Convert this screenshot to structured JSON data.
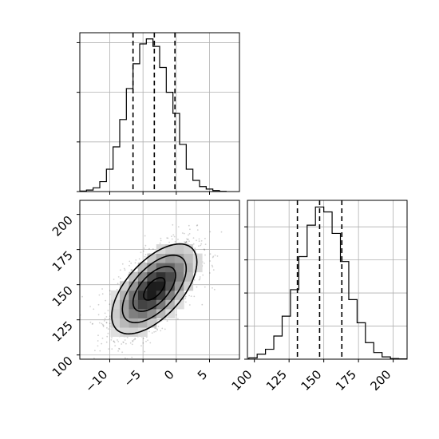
{
  "chart_data": [
    {
      "type": "histogram",
      "panel": "top-left",
      "variable_index": 0,
      "bin_edges": [
        -14.5,
        -13.5,
        -12.5,
        -11.5,
        -10.5,
        -9.5,
        -8.5,
        -7.5,
        -6.5,
        -5.5,
        -4.5,
        -3.5,
        -2.5,
        -1.5,
        -0.5,
        0.5,
        1.5,
        2.5,
        3.5,
        4.5,
        5.5,
        6.5,
        7.5
      ],
      "counts": [
        0.2,
        0.6,
        1.5,
        4.0,
        9.0,
        18.0,
        29.0,
        41.5,
        51.5,
        59.5,
        61.5,
        58.5,
        50.0,
        40.0,
        31.5,
        19.0,
        9.0,
        4.5,
        2.0,
        1.0,
        0.4,
        0.1
      ],
      "quantile_lines": [
        -6.5,
        -3.3,
        -0.2
      ],
      "xlim": [
        -14.5,
        9.5
      ],
      "ylim": [
        0,
        64
      ],
      "grid": true
    },
    {
      "type": "histogram",
      "panel": "bottom-right",
      "variable_index": 1,
      "x_ticks": [
        100,
        125,
        150,
        175,
        200
      ],
      "bin_edges": [
        96,
        102,
        108,
        114,
        120,
        126,
        132,
        138,
        144,
        150,
        156,
        162,
        168,
        174,
        180,
        186,
        192,
        198,
        204,
        210
      ],
      "counts": [
        0.4,
        1.5,
        3.0,
        7.0,
        13.0,
        21.0,
        31.0,
        40.5,
        46.0,
        44.5,
        38.0,
        29.5,
        18.0,
        11.0,
        5.0,
        2.0,
        0.7,
        0.2,
        0.1
      ],
      "quantile_lines": [
        131,
        147,
        163
      ],
      "xlim": [
        95,
        210
      ],
      "ylim": [
        0,
        48
      ],
      "grid": true
    },
    {
      "type": "heatmap",
      "panel": "bottom-left",
      "x_variable_index": 0,
      "y_variable_index": 1,
      "x_ticks": [
        -10,
        -5,
        0,
        5
      ],
      "y_ticks": [
        100,
        125,
        150,
        175,
        200
      ],
      "xlim": [
        -14.5,
        9.5
      ],
      "ylim": [
        97,
        210
      ],
      "density_center": [
        -3.3,
        147
      ],
      "density_sd": [
        3.2,
        16
      ],
      "density_correlation": 0.6,
      "contour_levels_sigma": [
        0.5,
        1.0,
        1.5,
        2.0
      ],
      "scatter_points": 2000,
      "grid": true
    }
  ]
}
